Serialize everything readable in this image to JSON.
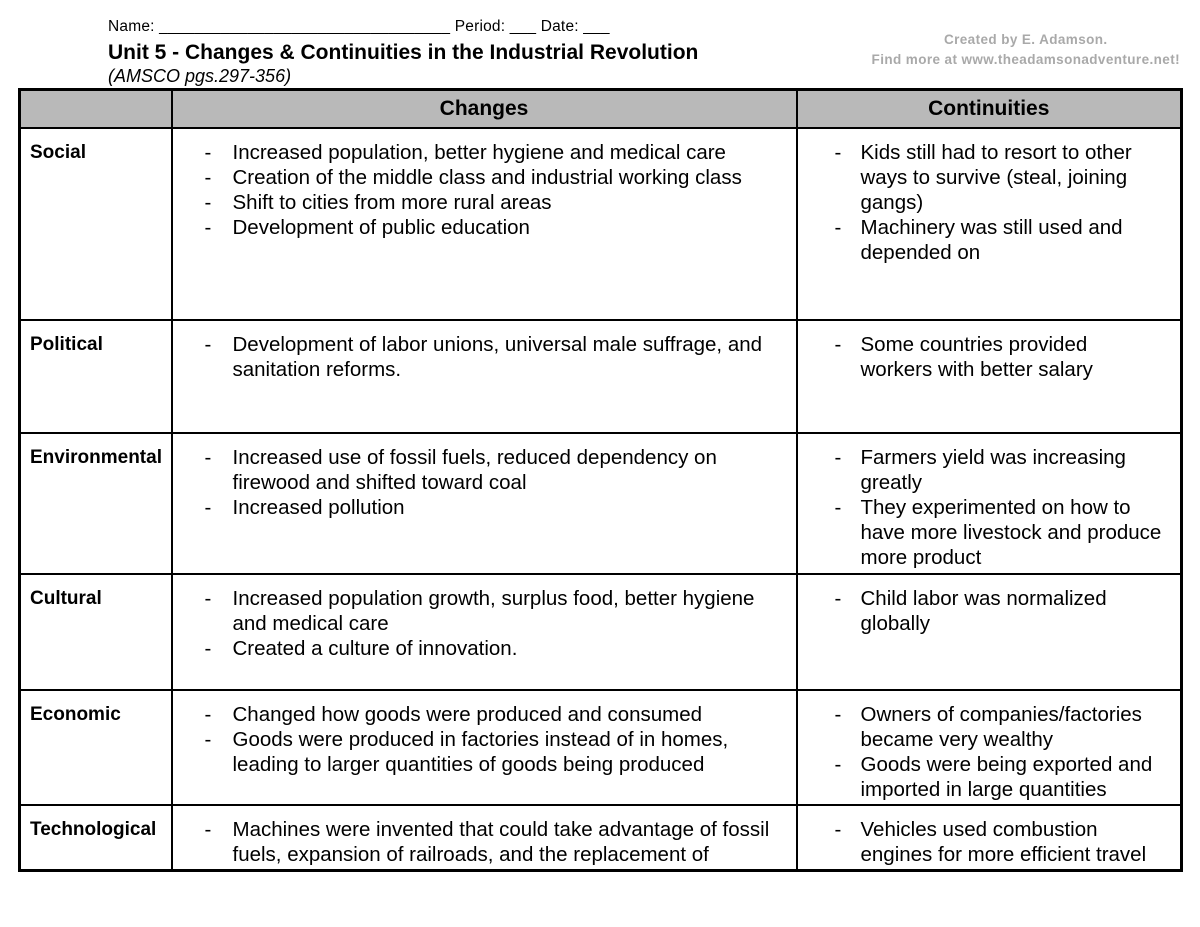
{
  "header": {
    "name_line": "Name: _________________________________ Period: ___ Date: ___",
    "title": "Unit 5 - Changes & Continuities in the Industrial Revolution",
    "subtitle": "(AMSCO pgs.297-356)",
    "credit_line1": "Created by E. Adamson.",
    "credit_line2": "Find more at www.theadamsonadventure.net!"
  },
  "colors": {
    "table_header_bg": "#b9b9b9",
    "border": "#000000",
    "credit_text": "#a9a9a9"
  },
  "table": {
    "bullet_char": "-",
    "columns": [
      "",
      "Changes",
      "Continuities"
    ],
    "rows": [
      {
        "label": "Social",
        "changes": [
          "Increased population, better hygiene and medical care",
          "Creation of the middle class and industrial working class",
          "Shift to cities from more rural areas",
          "Development of public education"
        ],
        "continuities": [
          "Kids still had to resort to other ways to survive (steal, joining gangs)",
          "Machinery was still used and depended on"
        ]
      },
      {
        "label": "Political",
        "changes": [
          "Development of labor unions, universal male suffrage, and sanitation reforms."
        ],
        "continuities": [
          "Some countries provided workers with better salary"
        ]
      },
      {
        "label": "Environmental",
        "changes": [
          "Increased use of fossil fuels, reduced dependency on firewood and shifted toward coal",
          "Increased pollution"
        ],
        "continuities": [
          "Farmers yield was increasing greatly",
          "They experimented on how to have more livestock and produce more product"
        ]
      },
      {
        "label": "Cultural",
        "changes": [
          "Increased population growth, surplus food, better hygiene and medical care",
          "Created a culture of innovation."
        ],
        "continuities": [
          "Child labor was normalized globally"
        ]
      },
      {
        "label": "Economic",
        "changes": [
          "Changed how goods were produced and consumed",
          "Goods were produced in factories instead of in homes, leading to larger quantities of goods being produced"
        ],
        "continuities": [
          "Owners of companies/factories became very wealthy",
          "Goods were being exported and imported in large quantities"
        ]
      },
      {
        "label": "Technological",
        "changes": [
          "Machines were invented that could take advantage of fossil fuels, expansion of railroads, and the replacement of"
        ],
        "continuities": [
          "Vehicles used combustion engines for more efficient travel"
        ]
      }
    ]
  }
}
